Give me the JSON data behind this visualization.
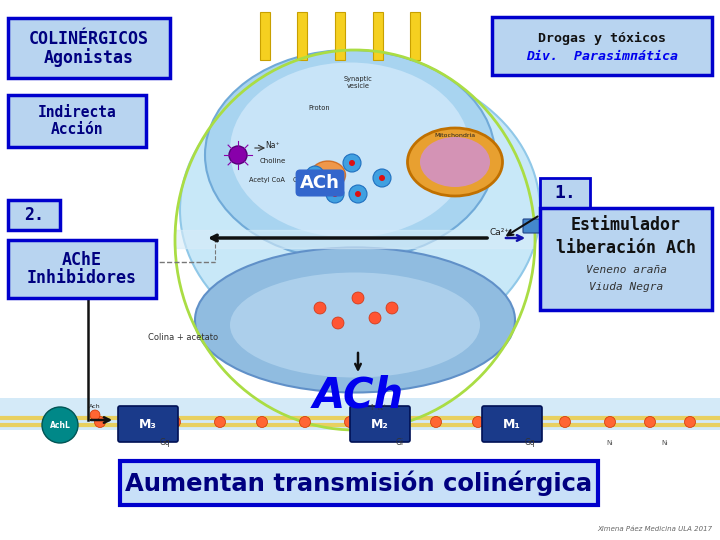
{
  "bg_color": "#ffffff",
  "title_bottom": "Aumentan transmisión colinérgica",
  "title_bottom_color": "#000080",
  "title_bottom_bg": "#add8e6",
  "title_bottom_border": "#0000cd",
  "box1_line1": "Agonistas",
  "box1_line2": "COLINÉRGICOS",
  "box_color": "#000080",
  "box_bg": "#b8d4f0",
  "box_border": "#0000cd",
  "box2_line1": "Acción",
  "box2_line2": "Indirecta",
  "box3_label": "2.",
  "box4_line1": "Inhibidores",
  "box4_line2": "AChE",
  "box5_label": "1.",
  "box6_line1": "Estimulador",
  "box6_line2": "liberación ACh",
  "box6_line3": "Veneno araña",
  "box6_line4": "Viuda Negra",
  "drogas_line1": "Drogas y tóxicos",
  "drogas_line2": "Div.  Parasimпática",
  "drogas_color1": "#111111",
  "drogas_color2": "#0000ee",
  "ach_synapse": "ACh",
  "ach_big": "ACh",
  "colina_label": "Colina + acetato",
  "yellow_bar": "#f5d020",
  "credit": "Ximena Páez Medicina ULA 2017"
}
